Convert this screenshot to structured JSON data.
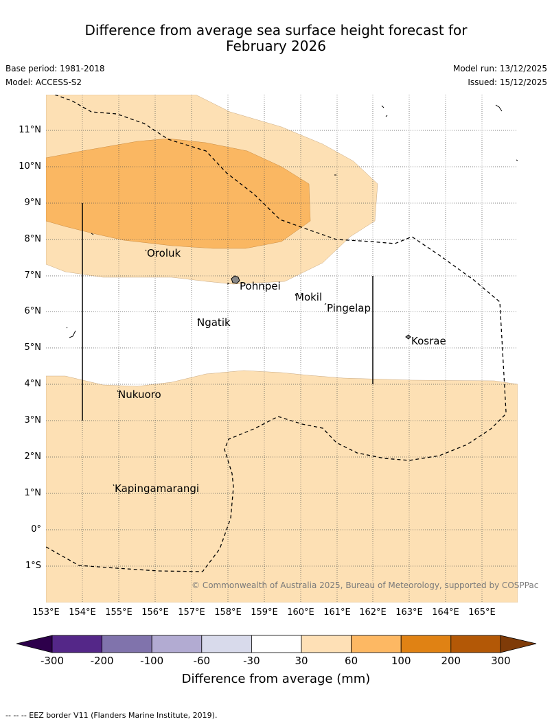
{
  "title": {
    "line1": "Difference from average sea surface height forecast for",
    "line2": "February 2026"
  },
  "info": {
    "base_period": "Base period: 1981-2018",
    "model": "Model: ACCESS-S2",
    "model_run": "Model run: 13/12/2025",
    "issued": "Issued: 15/12/2025"
  },
  "map": {
    "lat_labels": [
      "11°N",
      "10°N",
      "9°N",
      "8°N",
      "7°N",
      "6°N",
      "5°N",
      "4°N",
      "3°N",
      "2°N",
      "1°N",
      "0°",
      "1°S"
    ],
    "lon_labels": [
      "153°E",
      "154°E",
      "155°E",
      "156°E",
      "157°E",
      "158°E",
      "159°E",
      "160°E",
      "161°E",
      "162°E",
      "163°E",
      "164°E",
      "165°E"
    ],
    "places": [
      "Oroluk",
      "Pohnpei",
      "Mokil",
      "Pingelap",
      "Ngatik",
      "Kosrae",
      "Nukuoro",
      "Kapingamarangi"
    ],
    "copyright": "© Commonwealth of Australia 2025, Bureau of Meteorology, supported by COSPPac",
    "eez_border_style": "dashed",
    "colors": {
      "range_30_60": "#fde0b4",
      "range_60_100": "#fab762",
      "land": "#888888",
      "grid": "#555555"
    }
  },
  "legend": {
    "title": "Difference from average (mm)",
    "ticks": [
      "-300",
      "-200",
      "-100",
      "-60",
      "-30",
      "30",
      "60",
      "100",
      "200",
      "300"
    ],
    "colors": [
      "#2d004b",
      "#542788",
      "#8073ac",
      "#b2abd2",
      "#d8daeb",
      "#ffffff",
      "#fee0b6",
      "#fdb863",
      "#e08214",
      "#b35806",
      "#7f3b08"
    ]
  },
  "footer": "-- --  -- EEZ border V11 (Flanders Marine Institute, 2019)."
}
